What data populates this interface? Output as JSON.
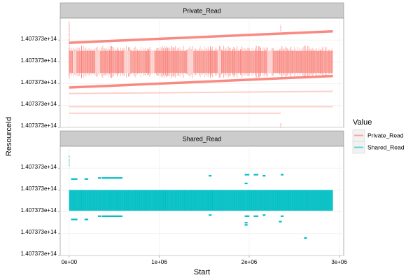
{
  "chart_data": {
    "type": "scatter",
    "xlabel": "Start",
    "ylabel": "ResourceId",
    "x_ticks": [
      {
        "value": 0,
        "label": "0e+00"
      },
      {
        "value": 1000000,
        "label": "1e+06"
      },
      {
        "value": 2000000,
        "label": "2e+06"
      },
      {
        "value": 3000000,
        "label": "3e+06"
      }
    ],
    "xlim": [
      -100000,
      3050000
    ],
    "y_tick_labels": [
      "1.407373e+14",
      "1.407373e+14",
      "1.407373e+14",
      "1.407373e+14",
      "1.407373e+14"
    ],
    "legend": {
      "title": "Value",
      "position": "right",
      "entries": [
        {
          "label": "Private_Read",
          "color": "#F8766D"
        },
        {
          "label": "Shared_Read",
          "color": "#00BFC4"
        }
      ]
    },
    "facets": [
      {
        "title": "Private_Read",
        "color": "#F8766D",
        "yrange": [
          0,
          1
        ],
        "dense_band": {
          "x": [
            0,
            2930000
          ],
          "y": [
            0.5,
            0.7
          ]
        },
        "lines": [
          {
            "x": [
              0,
              2930000
            ],
            "y": [
              0.775,
              0.88
            ]
          },
          {
            "x": [
              0,
              2930000
            ],
            "y": [
              0.365,
              0.47
            ]
          },
          {
            "x": [
              0,
              2930000
            ],
            "y": [
              0.31,
              0.33
            ],
            "opacity": 0.35
          },
          {
            "x": [
              0,
              2930000
            ],
            "y": [
              0.19,
              0.19
            ],
            "opacity": 0.35
          },
          {
            "x": [
              0,
              2350000
            ],
            "y": [
              0.13,
              0.13
            ],
            "opacity": 0.35
          }
        ],
        "spikes": [
          {
            "x": 0,
            "y": [
              0.45,
              0.97
            ]
          },
          {
            "x": 2350000,
            "y": [
              0.88,
              0.94
            ]
          },
          {
            "x": 2350000,
            "y": [
              0.0,
              0.04
            ]
          }
        ]
      },
      {
        "title": "Shared_Read",
        "color": "#00BFC4",
        "yrange": [
          0,
          1
        ],
        "dense_band": {
          "x": [
            0,
            2930000
          ],
          "y": [
            0.41,
            0.6
          ]
        },
        "segments": [
          {
            "x": [
              20000,
              80000
            ],
            "y": 0.7
          },
          {
            "x": [
              170000,
              200000
            ],
            "y": 0.7
          },
          {
            "x": [
              320000,
              340000
            ],
            "y": 0.71
          },
          {
            "x": [
              360000,
              580000
            ],
            "y": 0.71
          },
          {
            "x": [
              20000,
              80000
            ],
            "y": 0.33
          },
          {
            "x": [
              170000,
              200000
            ],
            "y": 0.33
          },
          {
            "x": [
              320000,
              340000
            ],
            "y": 0.36
          },
          {
            "x": [
              360000,
              580000
            ],
            "y": 0.36
          },
          {
            "x": [
              1550000,
              1570000
            ],
            "y": 0.73
          },
          {
            "x": [
              1550000,
              1570000
            ],
            "y": 0.37
          },
          {
            "x": [
              1950000,
              1990000
            ],
            "y": 0.74
          },
          {
            "x": [
              2050000,
              2090000
            ],
            "y": 0.74
          },
          {
            "x": [
              2150000,
              2170000
            ],
            "y": 0.73
          },
          {
            "x": [
              1950000,
              1990000
            ],
            "y": 0.36
          },
          {
            "x": [
              2050000,
              2090000
            ],
            "y": 0.36
          },
          {
            "x": [
              2150000,
              2170000
            ],
            "y": 0.37
          },
          {
            "x": [
              1950000,
              1970000
            ],
            "y": 0.66
          },
          {
            "x": [
              1950000,
              1970000
            ],
            "y": 0.3
          },
          {
            "x": [
              1950000,
              1970000
            ],
            "y": 0.28
          },
          {
            "x": [
              2350000,
              2370000
            ],
            "y": 0.74
          },
          {
            "x": [
              2350000,
              2370000
            ],
            "y": 0.36
          },
          {
            "x": [
              2330000,
              2350000
            ],
            "y": 0.31
          },
          {
            "x": [
              2610000,
              2630000
            ],
            "y": 0.16
          }
        ],
        "spikes": [
          {
            "x": 0,
            "y": [
              0.82,
              0.92
            ]
          }
        ]
      }
    ]
  }
}
